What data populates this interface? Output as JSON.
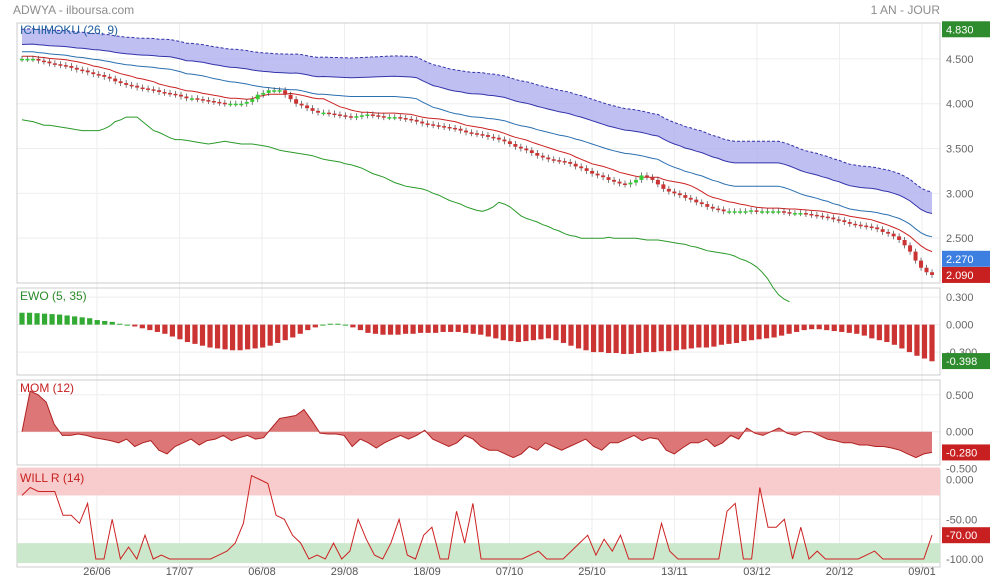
{
  "header": {
    "symbol": "ADWYA - ilboursa.com",
    "period": "1 AN - JOUR"
  },
  "colors": {
    "bull": "#33cc33",
    "bear": "#cc3333",
    "tenkan": "#cc2222",
    "kijun": "#2a6fb0",
    "chikou": "#2a9a2a",
    "cloud": "#aaaaee",
    "cloud_edge": "#3333aa",
    "ewo_pos": "#33aa33",
    "ewo_neg": "#cc3333",
    "mom_fill": "#dd7777",
    "willr_line": "#cc2222",
    "willr_over": "#f8cccc",
    "willr_under": "#cce8cc",
    "tag_green": "#2e8b2e",
    "tag_red": "#c82020",
    "tag_blue": "#3d7fe0"
  },
  "chart_data": [
    {
      "type": "candlestick",
      "title": "ICHIMOKU (26, 9)",
      "ylim": [
        2.0,
        4.9
      ],
      "y_ticks": [
        "4.500",
        "4.000",
        "3.500",
        "3.000",
        "2.500"
      ],
      "y_tick_values": [
        4.5,
        4.0,
        3.5,
        3.0,
        2.5
      ],
      "x_tick_labels": [
        "26/06",
        "17/07",
        "06/08",
        "29/08",
        "18/09",
        "07/10",
        "25/10",
        "13/11",
        "03/12",
        "20/12",
        "09/01"
      ],
      "price_tags": [
        {
          "text": "4.830",
          "value": 4.83,
          "color": "tag_green"
        },
        {
          "text": "2.270",
          "value": 2.27,
          "color": "tag_blue"
        },
        {
          "text": "2.090",
          "value": 2.09,
          "color": "tag_red"
        }
      ],
      "close": [
        4.5,
        4.5,
        4.5,
        4.48,
        4.47,
        4.45,
        4.44,
        4.43,
        4.42,
        4.4,
        4.38,
        4.37,
        4.35,
        4.33,
        4.32,
        4.3,
        4.28,
        4.25,
        4.23,
        4.21,
        4.2,
        4.18,
        4.17,
        4.16,
        4.15,
        4.13,
        4.12,
        4.11,
        4.1,
        4.08,
        4.06,
        4.06,
        4.05,
        4.04,
        4.03,
        4.02,
        4.01,
        4.0,
        4.0,
        4.0,
        4.0,
        4.02,
        4.05,
        4.1,
        4.12,
        4.15,
        4.15,
        4.15,
        4.1,
        4.05,
        4.0,
        3.98,
        3.95,
        3.92,
        3.9,
        3.9,
        3.89,
        3.88,
        3.87,
        3.86,
        3.85,
        3.86,
        3.87,
        3.88,
        3.87,
        3.86,
        3.85,
        3.85,
        3.85,
        3.84,
        3.83,
        3.82,
        3.8,
        3.78,
        3.77,
        3.76,
        3.75,
        3.74,
        3.73,
        3.72,
        3.7,
        3.68,
        3.67,
        3.66,
        3.65,
        3.63,
        3.62,
        3.6,
        3.58,
        3.55,
        3.52,
        3.5,
        3.48,
        3.45,
        3.42,
        3.4,
        3.38,
        3.37,
        3.36,
        3.35,
        3.33,
        3.3,
        3.28,
        3.25,
        3.22,
        3.2,
        3.18,
        3.15,
        3.13,
        3.11,
        3.1,
        3.12,
        3.15,
        3.2,
        3.18,
        3.15,
        3.1,
        3.05,
        3.02,
        3.0,
        2.98,
        2.95,
        2.93,
        2.9,
        2.88,
        2.85,
        2.83,
        2.82,
        2.8,
        2.8,
        2.8,
        2.8,
        2.8,
        2.81,
        2.8,
        2.8,
        2.8,
        2.8,
        2.8,
        2.79,
        2.78,
        2.78,
        2.78,
        2.77,
        2.76,
        2.75,
        2.74,
        2.73,
        2.71,
        2.7,
        2.68,
        2.66,
        2.65,
        2.64,
        2.63,
        2.62,
        2.6,
        2.57,
        2.55,
        2.52,
        2.48,
        2.42,
        2.35,
        2.25,
        2.17,
        2.12,
        2.09
      ]
    },
    {
      "type": "bar",
      "title": "EWO (5, 35)",
      "ylim": [
        -0.55,
        0.4
      ],
      "y_ticks": [
        "0.300",
        "0.000",
        "-0.300"
      ],
      "y_tick_values": [
        0.3,
        0.0,
        -0.3
      ],
      "tag": {
        "text": "-0.398",
        "value": -0.398,
        "color": "tag_green"
      },
      "values": [
        0.13,
        0.13,
        0.125,
        0.12,
        0.115,
        0.11,
        0.1,
        0.09,
        0.08,
        0.07,
        0.05,
        0.04,
        0.03,
        0.01,
        0.0,
        -0.02,
        -0.04,
        -0.06,
        -0.08,
        -0.1,
        -0.13,
        -0.16,
        -0.19,
        -0.21,
        -0.23,
        -0.25,
        -0.26,
        -0.27,
        -0.28,
        -0.28,
        -0.27,
        -0.26,
        -0.25,
        -0.23,
        -0.2,
        -0.17,
        -0.14,
        -0.1,
        -0.06,
        -0.03,
        0.0,
        0.01,
        0.01,
        0.0,
        -0.03,
        -0.06,
        -0.09,
        -0.1,
        -0.11,
        -0.11,
        -0.11,
        -0.1,
        -0.1,
        -0.09,
        -0.09,
        -0.09,
        -0.08,
        -0.08,
        -0.08,
        -0.09,
        -0.1,
        -0.11,
        -0.13,
        -0.15,
        -0.17,
        -0.18,
        -0.19,
        -0.18,
        -0.17,
        -0.16,
        -0.15,
        -0.17,
        -0.2,
        -0.23,
        -0.26,
        -0.28,
        -0.3,
        -0.3,
        -0.31,
        -0.31,
        -0.32,
        -0.32,
        -0.31,
        -0.3,
        -0.3,
        -0.29,
        -0.29,
        -0.28,
        -0.27,
        -0.26,
        -0.25,
        -0.25,
        -0.24,
        -0.22,
        -0.21,
        -0.2,
        -0.18,
        -0.17,
        -0.16,
        -0.15,
        -0.14,
        -0.12,
        -0.1,
        -0.08,
        -0.06,
        -0.05,
        -0.05,
        -0.06,
        -0.07,
        -0.08,
        -0.09,
        -0.1,
        -0.12,
        -0.15,
        -0.17,
        -0.19,
        -0.22,
        -0.26,
        -0.3,
        -0.34,
        -0.37,
        -0.4
      ]
    },
    {
      "type": "area",
      "title": "MOM (12)",
      "ylim": [
        -0.45,
        0.7
      ],
      "y_ticks": [
        "0.500",
        "0.000",
        "-0.500"
      ],
      "y_tick_values": [
        0.5,
        0.0,
        -0.5
      ],
      "tag": {
        "text": "-0.280",
        "value": -0.28,
        "color": "tag_red"
      },
      "values": [
        0.0,
        0.55,
        0.5,
        0.4,
        0.1,
        -0.05,
        -0.05,
        -0.03,
        -0.05,
        -0.08,
        -0.1,
        -0.12,
        -0.15,
        -0.1,
        -0.2,
        -0.15,
        -0.12,
        -0.25,
        -0.3,
        -0.2,
        -0.15,
        -0.1,
        -0.18,
        -0.12,
        -0.1,
        -0.05,
        -0.12,
        -0.08,
        -0.05,
        -0.1,
        -0.08,
        0.05,
        0.18,
        0.2,
        0.22,
        0.3,
        0.15,
        -0.02,
        -0.03,
        -0.03,
        -0.05,
        -0.2,
        -0.1,
        -0.15,
        -0.22,
        -0.15,
        -0.1,
        -0.05,
        -0.1,
        -0.05,
        0.02,
        -0.1,
        -0.15,
        -0.2,
        -0.15,
        -0.05,
        -0.1,
        -0.2,
        -0.25,
        -0.25,
        -0.3,
        -0.35,
        -0.3,
        -0.2,
        -0.25,
        -0.15,
        -0.2,
        -0.25,
        -0.2,
        -0.15,
        -0.1,
        -0.2,
        -0.25,
        -0.15,
        -0.15,
        -0.1,
        -0.05,
        -0.12,
        -0.08,
        -0.1,
        -0.25,
        -0.3,
        -0.22,
        -0.15,
        -0.15,
        -0.1,
        -0.2,
        -0.15,
        -0.05,
        -0.1,
        0.05,
        -0.02,
        -0.05,
        0.0,
        0.05,
        -0.02,
        -0.05,
        0.0,
        0.0,
        -0.05,
        -0.1,
        -0.12,
        -0.15,
        -0.15,
        -0.18,
        -0.18,
        -0.2,
        -0.2,
        -0.22,
        -0.25,
        -0.3,
        -0.35,
        -0.3,
        -0.28
      ]
    },
    {
      "type": "line",
      "title": "WILL R (14)",
      "ylim": [
        -110,
        12
      ],
      "y_ticks": [
        "0.000",
        "-50.00",
        "-100.00"
      ],
      "y_tick_values": [
        0,
        -50,
        -100
      ],
      "overbought": -20,
      "oversold": -80,
      "tag": {
        "text": "-70.00",
        "value": -70,
        "color": "tag_red"
      },
      "values": [
        -20,
        -10,
        -15,
        -15,
        -15,
        -45,
        -45,
        -55,
        -30,
        -100,
        -100,
        -50,
        -100,
        -85,
        -100,
        -70,
        -100,
        -95,
        -100,
        -100,
        -100,
        -100,
        -100,
        -100,
        -95,
        -90,
        -80,
        -55,
        5,
        0,
        -5,
        -45,
        -50,
        -70,
        -80,
        -100,
        -95,
        -100,
        -80,
        -100,
        -90,
        -50,
        -75,
        -95,
        -100,
        -80,
        -50,
        -95,
        -100,
        -70,
        -60,
        -100,
        -100,
        -40,
        -80,
        -30,
        -100,
        -100,
        -100,
        -100,
        -100,
        -100,
        -95,
        -90,
        -100,
        -100,
        -100,
        -90,
        -80,
        -70,
        -95,
        -75,
        -90,
        -70,
        -100,
        -100,
        -100,
        -100,
        -55,
        -90,
        -100,
        -100,
        -100,
        -100,
        -100,
        -100,
        -40,
        -30,
        -100,
        -100,
        -10,
        -60,
        -60,
        -50,
        -100,
        -60,
        -100,
        -90,
        -100,
        -100,
        -100,
        -100,
        -100,
        -95,
        -90,
        -100,
        -100,
        -100,
        -100,
        -100,
        -100,
        -70
      ]
    }
  ]
}
